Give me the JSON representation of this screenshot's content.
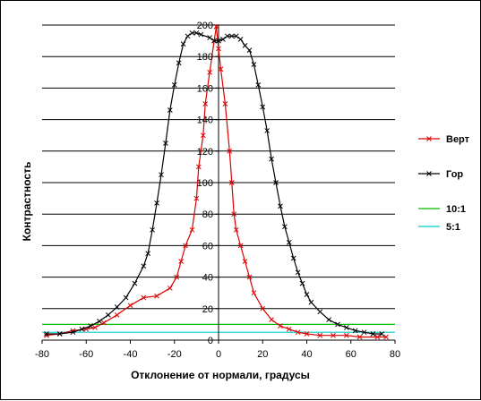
{
  "chart_data": {
    "type": "line",
    "title": "",
    "xlabel": "Отклонение от нормали, градусы",
    "ylabel": "Контрастность",
    "xlim": [
      -80,
      80
    ],
    "ylim": [
      0,
      200
    ],
    "x_ticks": [
      -80,
      -60,
      -40,
      -20,
      0,
      20,
      40,
      60,
      80
    ],
    "y_ticks": [
      0,
      20,
      40,
      60,
      80,
      100,
      120,
      140,
      160,
      180,
      200
    ],
    "grid": "horizontal",
    "legend_position": "right",
    "series": [
      {
        "name": "Верт",
        "color": "#dd0000",
        "marker": "x",
        "points": [
          [
            -1,
            199
          ],
          [
            0,
            185
          ],
          [
            1,
            172
          ],
          [
            3,
            150
          ],
          [
            5,
            120
          ],
          [
            6,
            100
          ],
          [
            7,
            80
          ],
          [
            8,
            70
          ],
          [
            10,
            60
          ],
          [
            12,
            50
          ],
          [
            14,
            40
          ],
          [
            16,
            30
          ],
          [
            20,
            20
          ],
          [
            24,
            13
          ],
          [
            28,
            9
          ],
          [
            32,
            7
          ],
          [
            36,
            5
          ],
          [
            40,
            4
          ],
          [
            46,
            3
          ],
          [
            52,
            3
          ],
          [
            58,
            3
          ],
          [
            64,
            2
          ],
          [
            72,
            2
          ],
          [
            76,
            2
          ]
        ],
        "points_branch2": [
          [
            -1,
            199
          ],
          [
            -2,
            190
          ],
          [
            -4,
            170
          ],
          [
            -6,
            150
          ],
          [
            -7,
            130
          ],
          [
            -9,
            110
          ],
          [
            -10,
            90
          ],
          [
            -12,
            70
          ],
          [
            -15,
            60
          ],
          [
            -17,
            50
          ],
          [
            -19,
            40
          ],
          [
            -22,
            33
          ],
          [
            -28,
            28
          ],
          [
            -34,
            27
          ],
          [
            -40,
            22
          ],
          [
            -46,
            16
          ],
          [
            -52,
            11
          ],
          [
            -56,
            8
          ],
          [
            -60,
            7
          ],
          [
            -66,
            6
          ],
          [
            -72,
            4
          ],
          [
            -78,
            3
          ]
        ]
      },
      {
        "name": "Гор",
        "color": "#000000",
        "marker": "x",
        "points": [
          [
            -78,
            4
          ],
          [
            -72,
            4
          ],
          [
            -66,
            5
          ],
          [
            -62,
            7
          ],
          [
            -58,
            9
          ],
          [
            -54,
            12
          ],
          [
            -50,
            16
          ],
          [
            -46,
            21
          ],
          [
            -42,
            27
          ],
          [
            -38,
            36
          ],
          [
            -34,
            47
          ],
          [
            -32,
            55
          ],
          [
            -30,
            70
          ],
          [
            -28,
            87
          ],
          [
            -26,
            105
          ],
          [
            -24,
            125
          ],
          [
            -22,
            146
          ],
          [
            -20,
            162
          ],
          [
            -18,
            176
          ],
          [
            -16,
            188
          ],
          [
            -14,
            193
          ],
          [
            -12,
            195
          ],
          [
            -10,
            195
          ],
          [
            -8,
            194
          ],
          [
            -4,
            192
          ],
          [
            -2,
            190
          ],
          [
            0,
            190
          ],
          [
            2,
            191
          ],
          [
            4,
            193
          ],
          [
            6,
            193
          ],
          [
            8,
            193
          ],
          [
            10,
            191
          ],
          [
            12,
            187
          ],
          [
            14,
            184
          ],
          [
            16,
            175
          ],
          [
            18,
            162
          ],
          [
            20,
            148
          ],
          [
            22,
            133
          ],
          [
            24,
            115
          ],
          [
            26,
            100
          ],
          [
            28,
            85
          ],
          [
            30,
            72
          ],
          [
            32,
            62
          ],
          [
            34,
            52
          ],
          [
            36,
            43
          ],
          [
            38,
            36
          ],
          [
            40,
            29
          ],
          [
            42,
            24
          ],
          [
            46,
            18
          ],
          [
            50,
            13
          ],
          [
            54,
            10
          ],
          [
            58,
            8
          ],
          [
            62,
            6
          ],
          [
            66,
            5
          ],
          [
            70,
            4
          ],
          [
            74,
            4
          ]
        ]
      }
    ],
    "reference_lines": [
      {
        "name": "10:1",
        "y": 10,
        "color": "#00bb00"
      },
      {
        "name": "5:1",
        "y": 5,
        "color": "#00cccc"
      }
    ]
  }
}
